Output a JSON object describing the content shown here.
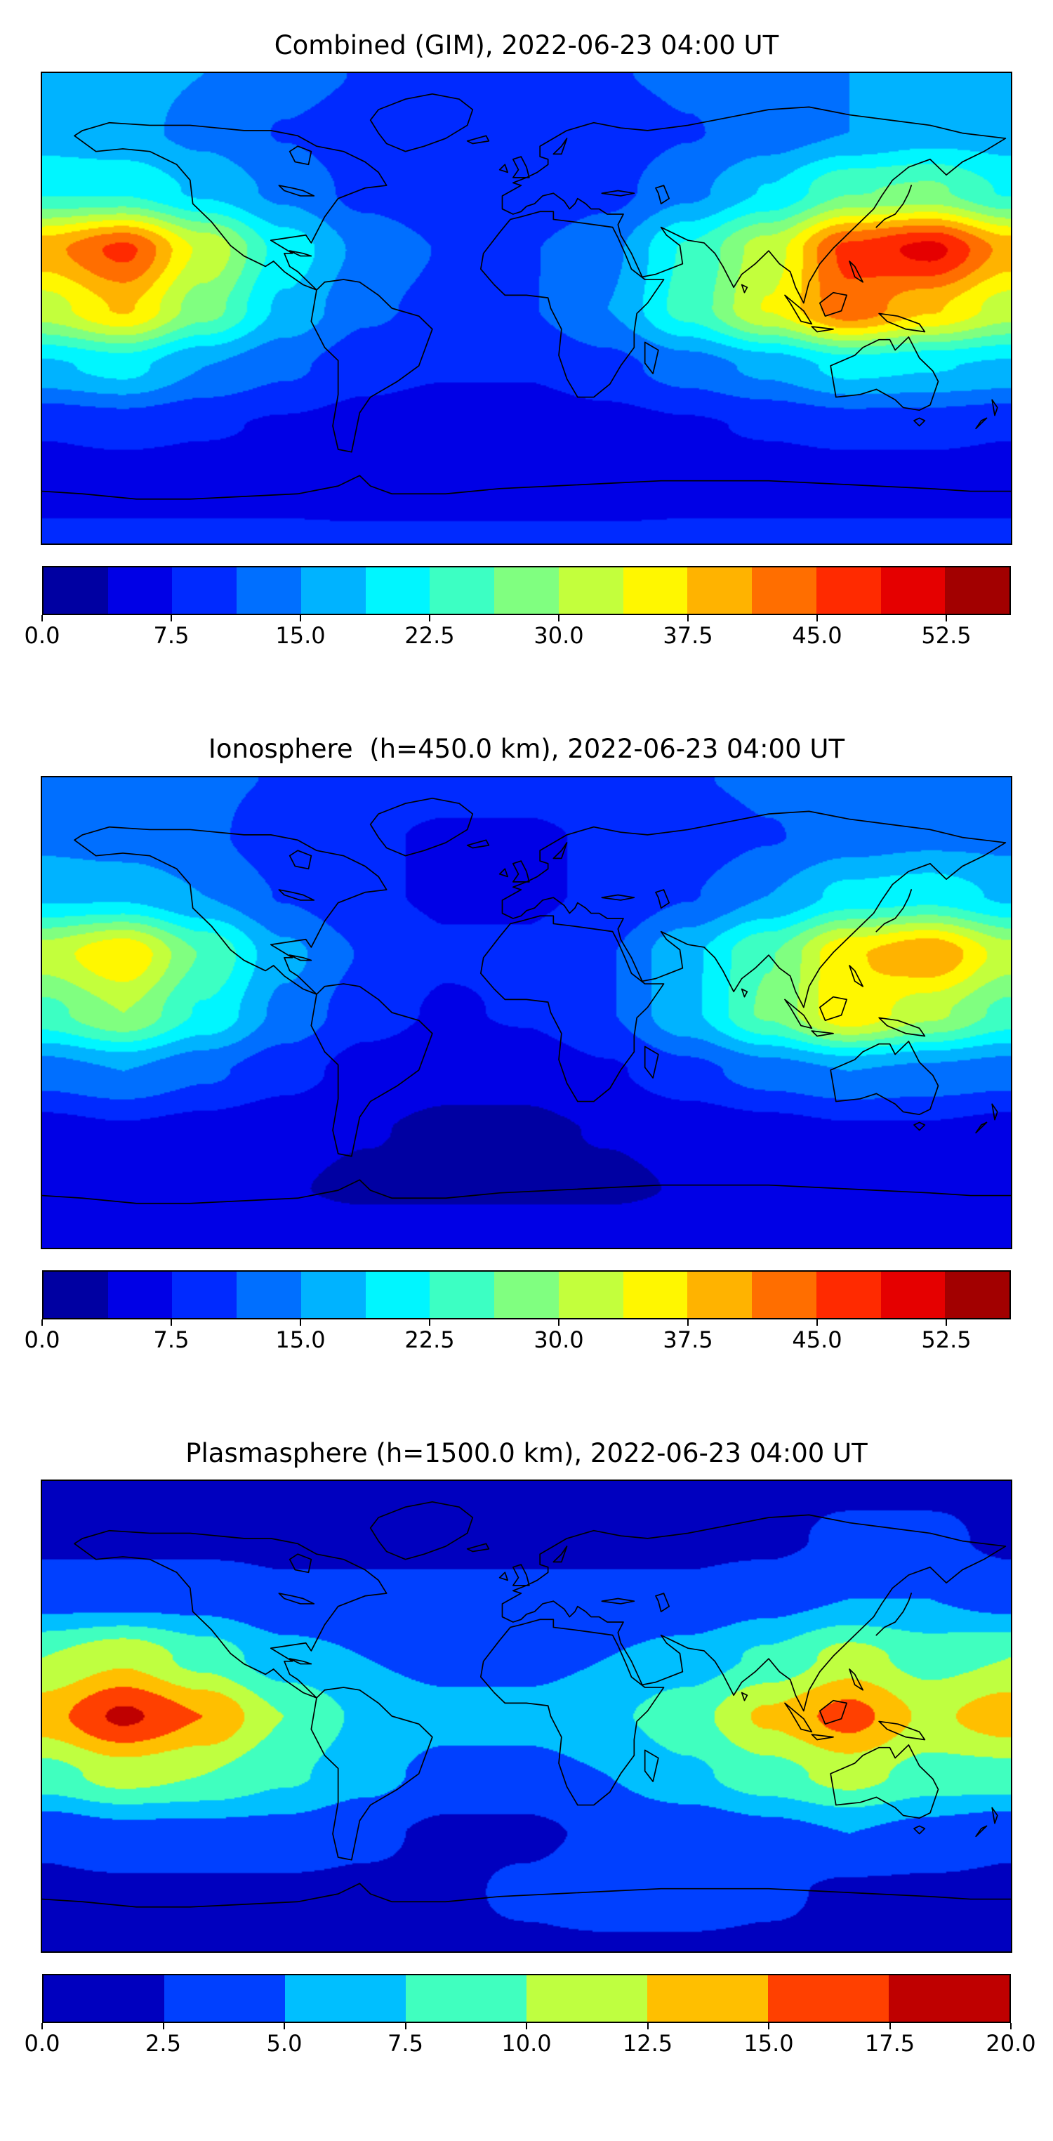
{
  "figure": {
    "background_color": "#ffffff",
    "text_color": "#000000",
    "n_panels": 3
  },
  "chart_data": [
    {
      "type": "heatmap",
      "style": "filled-contour world map (equirectangular, lon -180..180, lat -90..90) with coastlines",
      "title": "Combined (GIM), 2022-06-23 04:00 UT",
      "colormap": "jet",
      "levels": {
        "vmin": 0,
        "vmax": 56.25,
        "step": 3.75,
        "n_bands": 15
      },
      "colorbar_ticks": [
        0,
        7.5,
        15,
        22.5,
        30,
        37.5,
        45,
        52.5
      ],
      "legend_position": "bottom colorbar",
      "lon": [
        -180,
        -150,
        -120,
        -90,
        -60,
        -30,
        0,
        30,
        60,
        90,
        120,
        150,
        180
      ],
      "lat": [
        90,
        67.5,
        45,
        22.5,
        0,
        -22.5,
        -45,
        -67.5,
        -90
      ],
      "values": [
        [
          16,
          16,
          15,
          13,
          11,
          10,
          10,
          11,
          12,
          14,
          15,
          16,
          16
        ],
        [
          17,
          16,
          14,
          11,
          9,
          8,
          8,
          9,
          11,
          13,
          15,
          17,
          17
        ],
        [
          22,
          22,
          18,
          14,
          10,
          8,
          8,
          10,
          14,
          19,
          26,
          27,
          22
        ],
        [
          40,
          46,
          33,
          21,
          14,
          11,
          11,
          14,
          23,
          32,
          46,
          50,
          40
        ],
        [
          32,
          38,
          28,
          18,
          12,
          10,
          11,
          15,
          24,
          34,
          44,
          38,
          32
        ],
        [
          18,
          20,
          15,
          12,
          9,
          8,
          8,
          10,
          13,
          16,
          20,
          19,
          18
        ],
        [
          8,
          9,
          8,
          7,
          6,
          5,
          5,
          6,
          7,
          8,
          9,
          9,
          8
        ],
        [
          5,
          5,
          5,
          5,
          4,
          4,
          4,
          4,
          5,
          5,
          5,
          5,
          5
        ],
        [
          9,
          9,
          9,
          9,
          9,
          9,
          9,
          9,
          9,
          9,
          9,
          9,
          9
        ]
      ]
    },
    {
      "type": "heatmap",
      "style": "filled-contour world map (equirectangular, lon -180..180, lat -90..90) with coastlines",
      "title": "Ionosphere  (h=450.0 km), 2022-06-23 04:00 UT",
      "colormap": "jet",
      "levels": {
        "vmin": 0,
        "vmax": 56.25,
        "step": 3.75,
        "n_bands": 15
      },
      "colorbar_ticks": [
        0,
        7.5,
        15,
        22.5,
        30,
        37.5,
        45,
        52.5
      ],
      "legend_position": "bottom colorbar",
      "lon": [
        -180,
        -150,
        -120,
        -90,
        -60,
        -30,
        0,
        30,
        60,
        90,
        120,
        150,
        180
      ],
      "lat": [
        90,
        67.5,
        45,
        22.5,
        0,
        -22.5,
        -45,
        -67.5,
        -90
      ],
      "values": [
        [
          13,
          13,
          12,
          11,
          10,
          9,
          9,
          10,
          11,
          12,
          13,
          13,
          13
        ],
        [
          14,
          13,
          12,
          9,
          8,
          7,
          7,
          8,
          9,
          11,
          13,
          14,
          14
        ],
        [
          18,
          18,
          15,
          11,
          8,
          7,
          7,
          8,
          11,
          15,
          20,
          21,
          18
        ],
        [
          32,
          37,
          26,
          16,
          11,
          8,
          8,
          11,
          18,
          26,
          37,
          41,
          32
        ],
        [
          25,
          30,
          22,
          14,
          9,
          7,
          8,
          11,
          18,
          27,
          37,
          31,
          25
        ],
        [
          13,
          15,
          12,
          9,
          6,
          5,
          5,
          7,
          10,
          13,
          15,
          14,
          13
        ],
        [
          6,
          7,
          6,
          5,
          4,
          3,
          3,
          4,
          5,
          6,
          7,
          7,
          6
        ],
        [
          4,
          4,
          4,
          4,
          3,
          3,
          3,
          3,
          4,
          4,
          4,
          4,
          4
        ],
        [
          7,
          7,
          7,
          7,
          7,
          7,
          7,
          7,
          7,
          7,
          7,
          7,
          7
        ]
      ]
    },
    {
      "type": "heatmap",
      "style": "filled-contour world map (equirectangular, lon -180..180, lat -90..90) with coastlines",
      "title": "Plasmasphere (h=1500.0 km), 2022-06-23 04:00 UT",
      "colormap": "jet",
      "levels": {
        "vmin": 0,
        "vmax": 20,
        "step": 2.5,
        "n_bands": 8
      },
      "colorbar_ticks": [
        0,
        2.5,
        5,
        7.5,
        10,
        12.5,
        15,
        17.5,
        20
      ],
      "legend_position": "bottom colorbar",
      "lon": [
        -180,
        -150,
        -120,
        -90,
        -60,
        -30,
        0,
        30,
        60,
        90,
        120,
        150,
        180
      ],
      "lat": [
        90,
        67.5,
        45,
        22.5,
        0,
        -22.5,
        -45,
        -67.5,
        -90
      ],
      "values": [
        [
          2,
          2,
          2,
          2,
          2,
          2,
          2,
          2,
          2,
          2,
          2,
          2,
          2
        ],
        [
          2,
          2,
          2,
          2,
          2,
          2,
          2,
          2,
          2,
          2,
          3,
          3,
          2
        ],
        [
          4,
          4,
          4,
          3,
          3,
          3,
          3,
          3,
          3,
          4,
          5,
          5,
          4
        ],
        [
          10,
          12,
          9,
          6,
          5,
          4,
          4,
          5,
          6,
          8,
          11,
          9,
          10
        ],
        [
          14,
          18,
          15,
          10,
          7,
          6,
          6,
          7,
          9,
          13,
          16,
          12,
          14
        ],
        [
          9,
          11,
          10,
          8,
          6,
          4,
          4,
          5,
          7,
          9,
          11,
          9,
          9
        ],
        [
          3,
          4,
          4,
          4,
          3,
          2,
          2,
          3,
          3,
          4,
          5,
          4,
          3
        ],
        [
          2,
          2,
          2,
          2,
          2,
          2,
          3,
          4,
          4,
          3,
          2,
          2,
          2
        ],
        [
          2,
          2,
          2,
          2,
          2,
          2,
          2,
          2,
          2,
          2,
          2,
          2,
          2
        ]
      ]
    }
  ]
}
